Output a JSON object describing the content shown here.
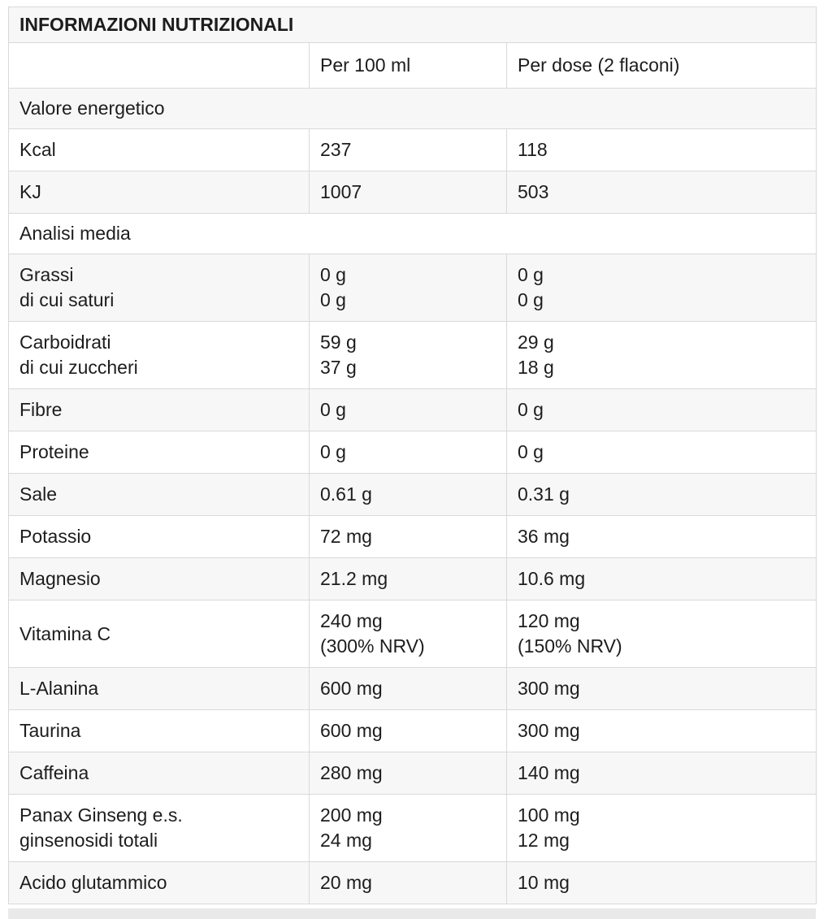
{
  "title": "INFORMAZIONI NUTRIZIONALI",
  "header": [
    "",
    "Per 100 ml",
    "Per dose (2 flaconi)"
  ],
  "rows": [
    {
      "type": "section",
      "label": "Valore energetico"
    },
    {
      "type": "data",
      "cells": [
        [
          "Kcal"
        ],
        [
          "237"
        ],
        [
          "118"
        ]
      ]
    },
    {
      "type": "data",
      "cells": [
        [
          "KJ"
        ],
        [
          "1007"
        ],
        [
          "503"
        ]
      ]
    },
    {
      "type": "section",
      "label": "Analisi media"
    },
    {
      "type": "data",
      "cells": [
        [
          "Grassi",
          "di cui saturi"
        ],
        [
          "0 g",
          "0 g"
        ],
        [
          "0 g",
          "0 g"
        ]
      ]
    },
    {
      "type": "data",
      "cells": [
        [
          "Carboidrati",
          "di cui zuccheri"
        ],
        [
          "59 g",
          "37 g"
        ],
        [
          "29 g",
          "18 g"
        ]
      ]
    },
    {
      "type": "data",
      "cells": [
        [
          "Fibre"
        ],
        [
          "0 g"
        ],
        [
          "0 g"
        ]
      ]
    },
    {
      "type": "data",
      "cells": [
        [
          "Proteine"
        ],
        [
          "0 g"
        ],
        [
          "0 g"
        ]
      ]
    },
    {
      "type": "data",
      "cells": [
        [
          "Sale"
        ],
        [
          "0.61 g"
        ],
        [
          "0.31 g"
        ]
      ]
    },
    {
      "type": "data",
      "cells": [
        [
          "Potassio"
        ],
        [
          "72 mg"
        ],
        [
          "36 mg"
        ]
      ]
    },
    {
      "type": "data",
      "cells": [
        [
          "Magnesio"
        ],
        [
          "21.2 mg"
        ],
        [
          "10.6 mg"
        ]
      ]
    },
    {
      "type": "data",
      "cells": [
        [
          "Vitamina C"
        ],
        [
          "240 mg",
          "(300% NRV)"
        ],
        [
          "120 mg",
          "(150% NRV)"
        ]
      ]
    },
    {
      "type": "data",
      "cells": [
        [
          "L-Alanina"
        ],
        [
          "600 mg"
        ],
        [
          "300 mg"
        ]
      ]
    },
    {
      "type": "data",
      "cells": [
        [
          "Taurina"
        ],
        [
          "600 mg"
        ],
        [
          "300 mg"
        ]
      ]
    },
    {
      "type": "data",
      "cells": [
        [
          "Caffeina"
        ],
        [
          "280 mg"
        ],
        [
          "140 mg"
        ]
      ]
    },
    {
      "type": "data",
      "cells": [
        [
          "Panax Ginseng e.s.",
          "ginsenosidi totali"
        ],
        [
          "200 mg",
          "24 mg"
        ],
        [
          "100 mg",
          "12 mg"
        ]
      ]
    },
    {
      "type": "data",
      "cells": [
        [
          "Acido glutammico"
        ],
        [
          "20 mg"
        ],
        [
          "10 mg"
        ]
      ]
    }
  ],
  "colors": {
    "row_alt": "#f7f7f7",
    "border": "#d9d9d9",
    "text": "#1d1d1d",
    "strip": "#e9e9e9"
  }
}
